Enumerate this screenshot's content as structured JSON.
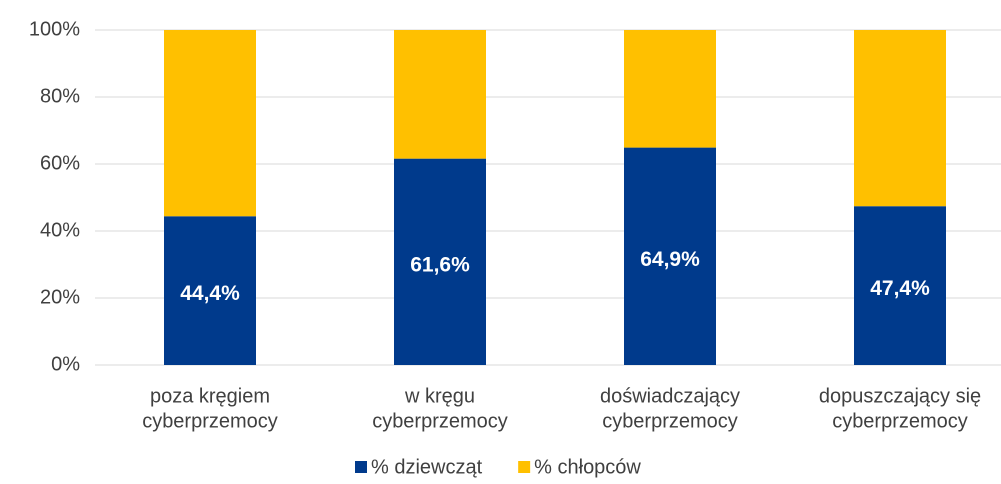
{
  "chart_data": {
    "type": "stacked_bar_100",
    "categories": [
      [
        "poza kręgiem",
        "cyberprzemocy"
      ],
      [
        "w kręgu",
        "cyberprzemocy"
      ],
      [
        "doświadczający",
        "cyberprzemocy"
      ],
      [
        "dopuszczający się",
        "cyberprzemocy"
      ]
    ],
    "series": [
      {
        "name": "% dziewcząt",
        "color": "#003a8c",
        "values": [
          44.4,
          61.6,
          64.9,
          47.4
        ],
        "value_labels": [
          "44,4%",
          "61,6%",
          "64,9%",
          "47,4%"
        ]
      },
      {
        "name": "% chłopców",
        "color": "#ffc000",
        "values": [
          55.6,
          38.4,
          35.1,
          52.6
        ]
      }
    ],
    "ylim": [
      0,
      100
    ],
    "yticks": [
      {
        "value": 0,
        "label": "0%"
      },
      {
        "value": 20,
        "label": "20%"
      },
      {
        "value": 40,
        "label": "40%"
      },
      {
        "value": 60,
        "label": "60%"
      },
      {
        "value": 80,
        "label": "80%"
      },
      {
        "value": 100,
        "label": "100%"
      }
    ],
    "grid": true,
    "legend": "bottom"
  }
}
